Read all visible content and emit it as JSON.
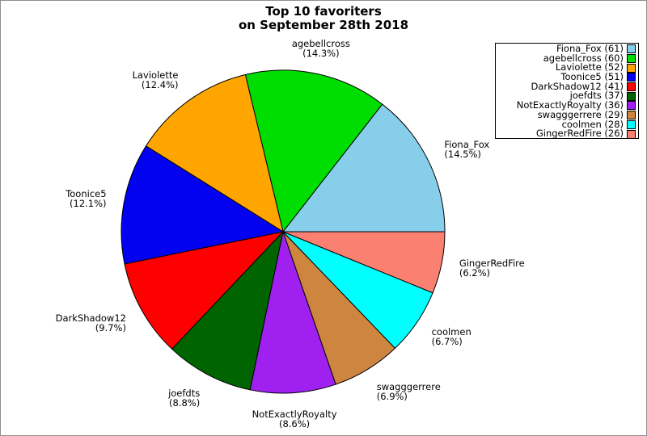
{
  "frame": {
    "border_color": "#8f8f8f",
    "background": "#ffffff"
  },
  "chart_data": {
    "type": "pie",
    "title_lines": [
      "Top 10 favoriters",
      "on September 28th 2018"
    ],
    "labels": [
      "Fiona_Fox",
      "agebellcross",
      "Laviolette",
      "Toonice5",
      "DarkShadow12",
      "joefdts",
      "NotExactlyRoyalty",
      "swagggerrere",
      "coolmen",
      "GingerRedFire"
    ],
    "values": [
      61,
      60,
      52,
      51,
      41,
      37,
      36,
      29,
      28,
      26
    ],
    "percent_display": [
      "(14.5%)",
      "(14.3%)",
      "(12.4%)",
      "(12.1%)",
      "(9.7%)",
      "(8.8%)",
      "(8.6%)",
      "(6.9%)",
      "(6.7%)",
      "(6.2%)"
    ],
    "colors": [
      "#87CEEB",
      "#00DD00",
      "#FFA500",
      "#0202F0",
      "#FF0000",
      "#006400",
      "#A020F0",
      "#CD853F",
      "#00FFFF",
      "#FA8072"
    ],
    "stroke_color": "#000000",
    "start_angle_deg": 0,
    "direction": "counterclockwise",
    "legend": {
      "position": "top-right",
      "entries": [
        "Fiona_Fox (61)",
        "agebellcross (60)",
        "Laviolette (52)",
        "Toonice5 (51)",
        "DarkShadow12 (41)",
        "joefdts (37)",
        "NotExactlyRoyalty (36)",
        "swagggerrere (29)",
        "coolmen (28)",
        "GingerRedFire (26)"
      ]
    }
  }
}
